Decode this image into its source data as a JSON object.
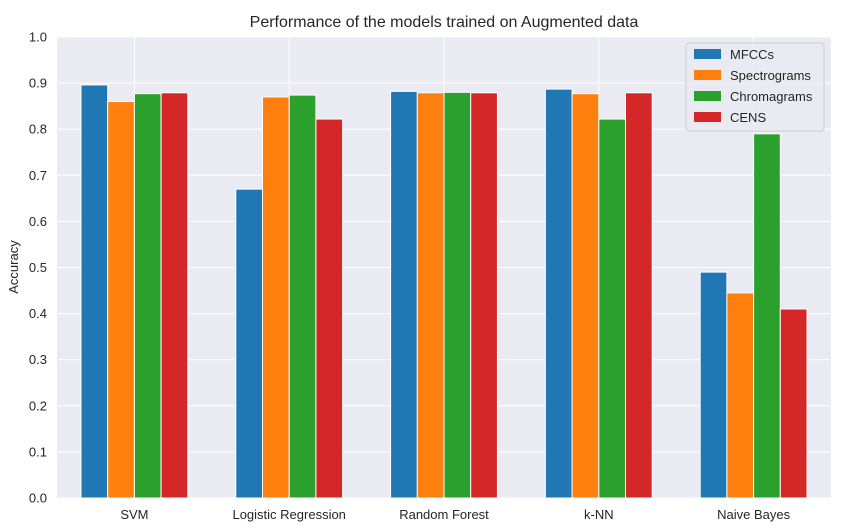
{
  "chart_data": {
    "type": "bar",
    "title": "Performance of the models trained on Augmented data",
    "xlabel": "",
    "ylabel": "Accuracy",
    "ylim": [
      0,
      1.0
    ],
    "yticks": [
      "0.0",
      "0.1",
      "0.2",
      "0.3",
      "0.4",
      "0.5",
      "0.6",
      "0.7",
      "0.8",
      "0.9",
      "1.0"
    ],
    "categories": [
      "SVM",
      "Logistic Regression",
      "Random Forest",
      "k-NN",
      "Naive Bayes"
    ],
    "series": [
      {
        "name": "MFCCs",
        "color": "#1f77b4",
        "values": [
          0.896,
          0.67,
          0.882,
          0.887,
          0.49
        ]
      },
      {
        "name": "Spectrograms",
        "color": "#ff7f0e",
        "values": [
          0.86,
          0.87,
          0.879,
          0.877,
          0.445
        ]
      },
      {
        "name": "Chromagrams",
        "color": "#2ca02c",
        "values": [
          0.877,
          0.874,
          0.88,
          0.822,
          0.79
        ]
      },
      {
        "name": "CENS",
        "color": "#d62728",
        "values": [
          0.879,
          0.822,
          0.879,
          0.879,
          0.41
        ]
      }
    ],
    "grid": true,
    "legend_position": "top-right",
    "background": "#eaeaf2"
  }
}
